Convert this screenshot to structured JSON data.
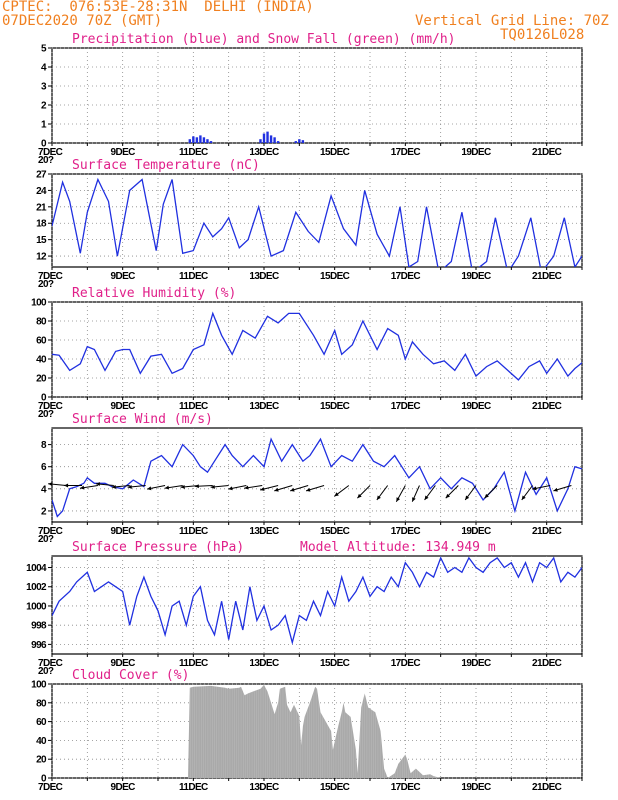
{
  "header": {
    "line1": "CPTEC:  076:53E-28:31N  DELHI (INDIA)",
    "line2": "07DEC2020 70Z (GMT)",
    "grid_note": "Vertical Grid Line: 70Z",
    "code": "TQ0126L028"
  },
  "colors": {
    "series": "#2030e0",
    "arrows": "#000000",
    "cloud": "#a9a9a9",
    "title": "#e0208a",
    "header": "#f08020"
  },
  "x_axis": {
    "labels": [
      "7DEC",
      "9DEC",
      "11DEC",
      "13DEC",
      "15DEC",
      "17DEC",
      "19DEC",
      "21DEC"
    ],
    "stub": "20?"
  },
  "chart_data": [
    {
      "type": "bar",
      "title": "Precipitation (blue) and Snow Fall (green) (mm/h)",
      "ylim": [
        0,
        5
      ],
      "yticks": [
        "0",
        "1",
        "2",
        "3",
        "4",
        "5"
      ],
      "series": [
        {
          "name": "Precipitation",
          "x": [
            10.9,
            11.0,
            11.1,
            11.2,
            11.3,
            11.4,
            11.5,
            12.9,
            13.0,
            13.1,
            13.2,
            13.3,
            13.4,
            13.9,
            14.0,
            14.1
          ],
          "values": [
            0.2,
            0.35,
            0.3,
            0.4,
            0.3,
            0.2,
            0.1,
            0.2,
            0.5,
            0.6,
            0.4,
            0.3,
            0.1,
            0.1,
            0.2,
            0.15
          ]
        },
        {
          "name": "Snow Fall",
          "x": [],
          "values": []
        }
      ]
    },
    {
      "type": "line",
      "title": "Surface Temperature (nC)",
      "ylim": [
        10,
        27
      ],
      "yticks": [
        "12",
        "15",
        "18",
        "21",
        "24",
        "27"
      ],
      "series": [
        {
          "name": "Temperature",
          "x": [
            7.0,
            7.3,
            7.5,
            7.8,
            8.0,
            8.3,
            8.6,
            8.85,
            9.2,
            9.55,
            9.95,
            10.15,
            10.4,
            10.7,
            11.0,
            11.3,
            11.55,
            11.8,
            12.0,
            12.3,
            12.55,
            12.85,
            13.2,
            13.55,
            13.9,
            14.25,
            14.55,
            14.9,
            15.25,
            15.6,
            15.85,
            16.2,
            16.55,
            16.85,
            17.1,
            17.35,
            17.6,
            17.95,
            18.3,
            18.6,
            18.9,
            19.3,
            19.55,
            19.9,
            20.2,
            20.55,
            20.85,
            21.2,
            21.5,
            21.8,
            22.0
          ],
          "values": [
            17.5,
            25.5,
            22,
            12.5,
            20,
            26,
            22,
            12,
            24,
            26,
            13,
            21.5,
            26,
            12.5,
            13,
            18,
            15.5,
            17,
            19,
            13.5,
            15,
            21,
            12,
            13,
            20,
            16.5,
            14.5,
            23,
            17,
            14,
            24,
            16,
            12,
            21,
            10,
            11,
            21,
            9,
            11,
            20,
            9,
            11,
            19,
            9,
            12,
            19,
            9,
            12,
            19,
            10,
            12
          ]
        }
      ]
    },
    {
      "type": "line",
      "title": "Relative Humidity (%)",
      "ylim": [
        0,
        100
      ],
      "yticks": [
        "0",
        "20",
        "40",
        "60",
        "80",
        "100"
      ],
      "series": [
        {
          "name": "Humidity",
          "x": [
            7.0,
            7.2,
            7.5,
            7.8,
            8.0,
            8.2,
            8.5,
            8.8,
            9.0,
            9.2,
            9.5,
            9.8,
            10.1,
            10.4,
            10.7,
            11.0,
            11.3,
            11.55,
            11.8,
            12.1,
            12.4,
            12.75,
            13.1,
            13.4,
            13.7,
            14.0,
            14.4,
            14.7,
            15.0,
            15.2,
            15.5,
            15.8,
            16.2,
            16.5,
            16.8,
            17.0,
            17.2,
            17.5,
            17.8,
            18.1,
            18.4,
            18.7,
            19.0,
            19.3,
            19.6,
            19.9,
            20.2,
            20.5,
            20.8,
            21.0,
            21.3,
            21.6,
            21.8,
            22.0
          ],
          "values": [
            45,
            44,
            28,
            35,
            53,
            50,
            28,
            48,
            50,
            50,
            25,
            43,
            45,
            25,
            30,
            50,
            55,
            88,
            65,
            45,
            70,
            62,
            85,
            78,
            88,
            88,
            65,
            45,
            70,
            45,
            55,
            80,
            50,
            72,
            65,
            40,
            58,
            45,
            35,
            38,
            28,
            45,
            22,
            32,
            38,
            28,
            18,
            32,
            38,
            25,
            40,
            22,
            30,
            36
          ]
        }
      ]
    },
    {
      "type": "line",
      "title": "Surface Wind (m/s)",
      "ylim": [
        1,
        9.5
      ],
      "yticks": [
        "2",
        "4",
        "6",
        "8"
      ],
      "series": [
        {
          "name": "Wind speed",
          "x": [
            7.0,
            7.15,
            7.3,
            7.5,
            7.7,
            7.9,
            8.0,
            8.2,
            8.5,
            8.7,
            9.0,
            9.3,
            9.6,
            9.8,
            10.1,
            10.4,
            10.7,
            11.0,
            11.2,
            11.4,
            11.6,
            11.9,
            12.1,
            12.4,
            12.7,
            13.0,
            13.2,
            13.5,
            13.8,
            14.1,
            14.3,
            14.6,
            14.9,
            15.2,
            15.5,
            15.8,
            16.1,
            16.4,
            16.7,
            16.9,
            17.1,
            17.4,
            17.7,
            18.0,
            18.3,
            18.6,
            18.9,
            19.2,
            19.5,
            19.8,
            20.1,
            20.4,
            20.7,
            21.0,
            21.3,
            21.6,
            21.8,
            22.0
          ],
          "values": [
            3,
            1.5,
            2,
            4,
            4.2,
            4.5,
            5,
            4.5,
            4.5,
            4.2,
            4,
            4.8,
            4.2,
            6.5,
            7,
            6,
            8,
            7,
            6,
            5.5,
            6.5,
            8,
            7,
            6,
            7,
            6,
            8.5,
            6.5,
            8,
            6.5,
            7,
            8.5,
            6,
            7,
            6.5,
            8,
            6.5,
            6,
            7,
            6,
            5,
            6,
            4,
            5,
            4,
            5,
            4.5,
            3,
            4,
            5.5,
            2,
            5.5,
            3.5,
            5,
            2,
            4,
            6,
            5.8
          ]
        },
        {
          "name": "Wind direction",
          "arrows": [
            {
              "x": 7.4,
              "u": -1,
              "v": 0.1
            },
            {
              "x": 7.85,
              "u": -1,
              "v": 0
            },
            {
              "x": 8.3,
              "u": -1,
              "v": -0.15
            },
            {
              "x": 8.75,
              "u": -1,
              "v": 0.1
            },
            {
              "x": 9.2,
              "u": -1,
              "v": -0.1
            },
            {
              "x": 9.65,
              "u": -1,
              "v": -0.1
            },
            {
              "x": 10.2,
              "u": -1,
              "v": -0.2
            },
            {
              "x": 10.7,
              "u": -1,
              "v": -0.15
            },
            {
              "x": 11.15,
              "u": -1,
              "v": -0.1
            },
            {
              "x": 11.55,
              "u": -1,
              "v": -0.05
            },
            {
              "x": 12.0,
              "u": -1,
              "v": -0.1
            },
            {
              "x": 12.5,
              "u": -1,
              "v": -0.2
            },
            {
              "x": 12.95,
              "u": -1,
              "v": -0.15
            },
            {
              "x": 13.4,
              "u": -1,
              "v": -0.25
            },
            {
              "x": 13.8,
              "u": -1,
              "v": -0.3
            },
            {
              "x": 14.25,
              "u": -1,
              "v": -0.3
            },
            {
              "x": 14.7,
              "u": -1,
              "v": -0.3
            },
            {
              "x": 15.4,
              "u": -0.8,
              "v": -0.6
            },
            {
              "x": 16.0,
              "u": -0.7,
              "v": -0.7
            },
            {
              "x": 16.5,
              "u": -0.6,
              "v": -0.8
            },
            {
              "x": 17.0,
              "u": -0.5,
              "v": -0.9
            },
            {
              "x": 17.4,
              "u": -0.4,
              "v": -0.9
            },
            {
              "x": 17.85,
              "u": -0.6,
              "v": -0.8
            },
            {
              "x": 18.5,
              "u": -0.7,
              "v": -0.7
            },
            {
              "x": 19.0,
              "u": -0.6,
              "v": -0.8
            },
            {
              "x": 19.6,
              "u": -0.7,
              "v": -0.7
            },
            {
              "x": 20.6,
              "u": -0.6,
              "v": -0.8
            },
            {
              "x": 21.1,
              "u": -1,
              "v": -0.2
            },
            {
              "x": 21.7,
              "u": -1,
              "v": -0.3
            }
          ]
        }
      ]
    },
    {
      "type": "line",
      "title": "Surface Pressure (hPa)",
      "subtitle": "Model Altitude: 134.949 m",
      "ylim": [
        995,
        1005.2
      ],
      "yticks": [
        "996",
        "998",
        "1000",
        "1002",
        "1004"
      ],
      "series": [
        {
          "name": "Pressure",
          "x": [
            7.0,
            7.2,
            7.5,
            7.7,
            8.0,
            8.2,
            8.4,
            8.6,
            8.8,
            9.0,
            9.2,
            9.4,
            9.6,
            9.8,
            10.0,
            10.2,
            10.4,
            10.6,
            10.8,
            11.0,
            11.2,
            11.4,
            11.6,
            11.8,
            12.0,
            12.2,
            12.4,
            12.6,
            12.8,
            13.0,
            13.2,
            13.4,
            13.6,
            13.8,
            14.0,
            14.2,
            14.4,
            14.6,
            14.8,
            15.0,
            15.2,
            15.4,
            15.6,
            15.8,
            16.0,
            16.2,
            16.4,
            16.6,
            16.8,
            17.0,
            17.2,
            17.4,
            17.6,
            17.8,
            18.0,
            18.2,
            18.4,
            18.6,
            18.8,
            19.0,
            19.2,
            19.4,
            19.6,
            19.8,
            20.0,
            20.2,
            20.4,
            20.6,
            20.8,
            21.0,
            21.2,
            21.4,
            21.6,
            21.8,
            22.0
          ],
          "values": [
            999,
            1000.5,
            1001.5,
            1002.5,
            1003.5,
            1001.5,
            1002,
            1002.5,
            1002,
            1001.5,
            998,
            1001,
            1003,
            1001,
            999.5,
            997,
            1000,
            1000.5,
            998,
            1001,
            1002,
            998.5,
            997,
            1000.5,
            996.5,
            1000.5,
            997.5,
            1002,
            998.5,
            1000,
            997.5,
            998,
            999,
            996.2,
            999,
            998.5,
            1000.5,
            999,
            1001.5,
            1000,
            1003,
            1000.5,
            1001.5,
            1003,
            1001,
            1002,
            1001.5,
            1003,
            1002,
            1004.5,
            1003.5,
            1002,
            1003.5,
            1003,
            1005,
            1003.5,
            1004,
            1003.5,
            1005,
            1004,
            1003.5,
            1004.5,
            1005,
            1004,
            1004.5,
            1003,
            1004.5,
            1002.5,
            1004.5,
            1004,
            1005,
            1002.5,
            1003.5,
            1003,
            1004
          ]
        }
      ]
    },
    {
      "type": "area",
      "title": "Cloud Cover (%)",
      "ylim": [
        0,
        100
      ],
      "yticks": [
        "0",
        "20",
        "40",
        "60",
        "80",
        "100"
      ],
      "series": [
        {
          "name": "Cloud cover",
          "x": [
            10.85,
            10.9,
            11.0,
            11.5,
            11.9,
            12.0,
            12.3,
            12.35,
            12.45,
            12.55,
            12.9,
            13.0,
            13.1,
            13.3,
            13.4,
            13.45,
            13.6,
            13.65,
            13.75,
            13.85,
            13.95,
            14.0,
            14.05,
            14.1,
            14.15,
            14.3,
            14.45,
            14.5,
            14.6,
            14.75,
            14.9,
            14.95,
            15.1,
            15.2,
            15.25,
            15.3,
            15.45,
            15.6,
            15.65,
            15.7,
            15.75,
            15.85,
            15.95,
            16.15,
            16.3,
            16.4,
            16.5,
            16.7,
            16.8,
            16.9,
            17.0,
            17.05,
            17.15,
            17.3,
            17.5,
            17.7,
            17.8,
            18.0
          ],
          "values": [
            0,
            96,
            97,
            98,
            96,
            95,
            96,
            97,
            88,
            90,
            95,
            99,
            92,
            68,
            80,
            95,
            97,
            78,
            70,
            78,
            70,
            66,
            35,
            55,
            65,
            80,
            97,
            95,
            70,
            60,
            50,
            30,
            55,
            70,
            80,
            70,
            65,
            30,
            5,
            40,
            75,
            90,
            75,
            70,
            50,
            10,
            0,
            5,
            15,
            20,
            25,
            20,
            5,
            10,
            3,
            4,
            2,
            0
          ]
        }
      ]
    }
  ]
}
